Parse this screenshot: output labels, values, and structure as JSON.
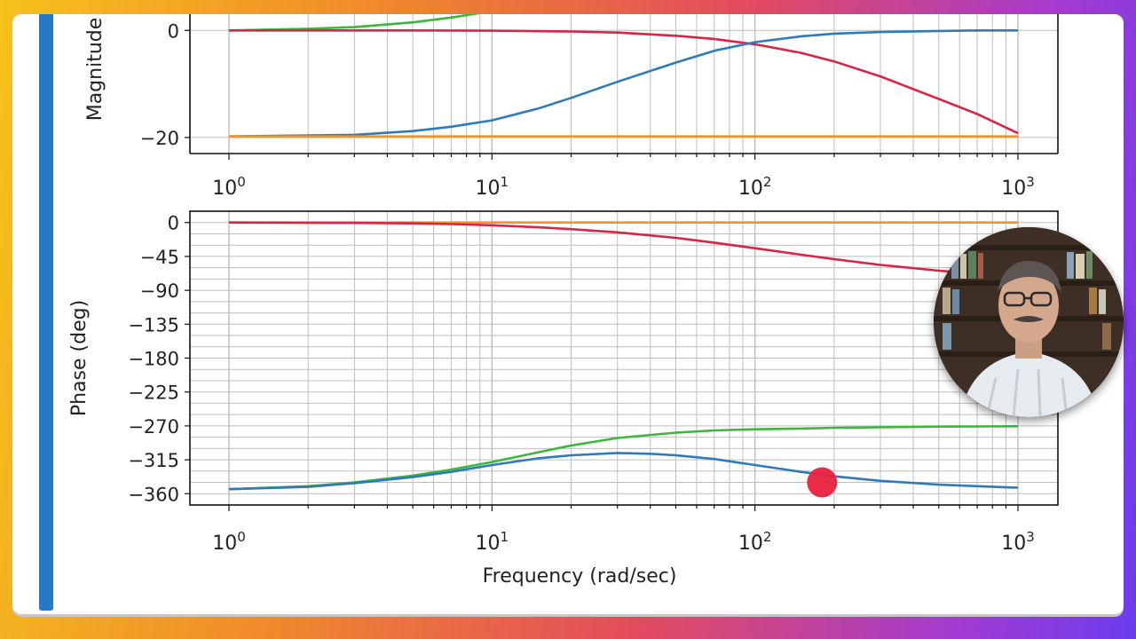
{
  "colors": {
    "accent": "#2479c9",
    "series_blue": "#2f7bb8",
    "series_red": "#d62545",
    "series_green": "#3cb63c",
    "series_orange": "#f5902a",
    "marker": "#e8223f"
  },
  "presenter": {
    "icon": "presenter-video-thumbnail"
  },
  "chart_data": [
    {
      "type": "line",
      "panel": "magnitude",
      "xscale": "log",
      "xlim": [
        1,
        1000
      ],
      "ylim": [
        -23,
        8
      ],
      "ylabel": "Magnitude",
      "x_ticks": [
        {
          "base": "10",
          "exp": "0"
        },
        {
          "base": "10",
          "exp": "1"
        },
        {
          "base": "10",
          "exp": "2"
        },
        {
          "base": "10",
          "exp": "3"
        }
      ],
      "y_ticks": [
        "0",
        "−20"
      ],
      "y_tick_values": [
        0,
        -20
      ],
      "grid": true,
      "series": [
        {
          "color_key": "series_green",
          "x": [
            1,
            2,
            3,
            5,
            7,
            10,
            14,
            20,
            25,
            30
          ],
          "y": [
            0,
            0.3,
            0.6,
            1.5,
            2.4,
            3.6,
            5.3,
            7.3,
            8.6,
            9.8
          ]
        },
        {
          "color_key": "series_red",
          "x": [
            1,
            5,
            10,
            20,
            30,
            50,
            70,
            100,
            150,
            200,
            300,
            500,
            700,
            1000
          ],
          "y": [
            0,
            0,
            -0.05,
            -0.2,
            -0.4,
            -1.0,
            -1.6,
            -2.6,
            -4.2,
            -5.8,
            -8.6,
            -12.8,
            -15.6,
            -19.2
          ]
        },
        {
          "color_key": "series_blue",
          "x": [
            1,
            3,
            5,
            7,
            10,
            15,
            20,
            30,
            50,
            70,
            100,
            150,
            200,
            300,
            500,
            700,
            1000
          ],
          "y": [
            -19.8,
            -19.5,
            -18.8,
            -18.0,
            -16.8,
            -14.6,
            -12.6,
            -9.6,
            -6.0,
            -3.8,
            -2.2,
            -1.1,
            -0.6,
            -0.3,
            -0.1,
            0,
            0
          ]
        },
        {
          "color_key": "series_orange",
          "x": [
            1,
            1000
          ],
          "y": [
            -19.8,
            -19.8
          ]
        }
      ]
    },
    {
      "type": "line",
      "panel": "phase",
      "xscale": "log",
      "xlim": [
        1,
        1000
      ],
      "ylim": [
        -375,
        15
      ],
      "xlabel": "Frequency (rad/sec)",
      "ylabel": "Phase (deg)",
      "x_ticks": [
        {
          "base": "10",
          "exp": "0"
        },
        {
          "base": "10",
          "exp": "1"
        },
        {
          "base": "10",
          "exp": "2"
        },
        {
          "base": "10",
          "exp": "3"
        }
      ],
      "y_ticks": [
        "0",
        "−45",
        "−90",
        "−135",
        "−180",
        "−225",
        "−270",
        "−315",
        "−360"
      ],
      "y_tick_values": [
        0,
        -45,
        -90,
        -135,
        -180,
        -225,
        -270,
        -315,
        -360
      ],
      "grid": true,
      "series": [
        {
          "color_key": "series_orange",
          "x": [
            1,
            1000
          ],
          "y": [
            0,
            0
          ]
        },
        {
          "color_key": "series_red",
          "x": [
            1,
            3,
            5,
            7,
            10,
            15,
            20,
            30,
            50,
            70,
            100,
            150,
            200,
            300,
            500,
            700
          ],
          "y": [
            0,
            -0.5,
            -1.2,
            -2.1,
            -3.6,
            -6.3,
            -8.8,
            -13.0,
            -20.4,
            -26.7,
            -34.1,
            -42.7,
            -48.6,
            -56.3,
            -64.0,
            -68.0
          ]
        },
        {
          "color_key": "series_green",
          "x": [
            1,
            2,
            3,
            5,
            7,
            10,
            15,
            20,
            30,
            50,
            70,
            100,
            150,
            200,
            300,
            500,
            700,
            1000
          ],
          "y": [
            -354,
            -350,
            -345,
            -336,
            -328,
            -318,
            -305,
            -296,
            -286,
            -279,
            -276,
            -274.5,
            -273.5,
            -272.5,
            -271.8,
            -271,
            -270.7,
            -270.5
          ]
        },
        {
          "color_key": "series_blue",
          "x": [
            1,
            2,
            3,
            5,
            7,
            10,
            15,
            20,
            30,
            40,
            50,
            70,
            100,
            150,
            200,
            300,
            500,
            700,
            1000
          ],
          "y": [
            -354,
            -351,
            -346,
            -338,
            -331,
            -322,
            -313,
            -309,
            -306,
            -307,
            -309,
            -314,
            -322,
            -331,
            -337,
            -343,
            -348,
            -350,
            -352
          ]
        }
      ],
      "marker": {
        "x": 180,
        "y": -345,
        "color_key": "marker"
      }
    }
  ]
}
